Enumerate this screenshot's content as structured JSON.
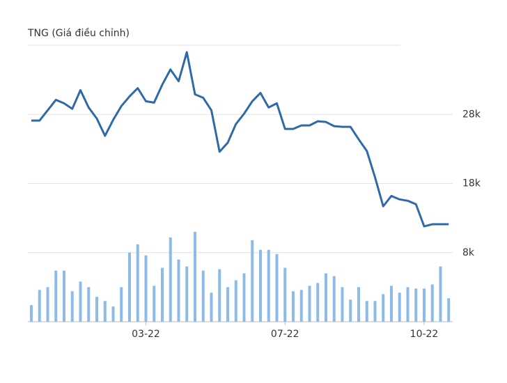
{
  "chart_data": {
    "type": "line",
    "title": "TNG (Giá điều chỉnh)",
    "categories": [
      null,
      null,
      null,
      null,
      null,
      null,
      null,
      null,
      null,
      null,
      null,
      null,
      null,
      null,
      "03-22",
      null,
      null,
      null,
      null,
      null,
      null,
      null,
      null,
      null,
      null,
      null,
      null,
      null,
      null,
      null,
      null,
      "07-22",
      null,
      null,
      null,
      null,
      null,
      null,
      null,
      null,
      null,
      null,
      null,
      null,
      null,
      null,
      null,
      null,
      "10-22",
      null,
      null,
      null
    ],
    "series": [
      {
        "type": "line",
        "color": "#2e6aa8",
        "values": [
          27.1,
          27.1,
          28.6,
          30.1,
          29.6,
          28.8,
          31.5,
          29.0,
          27.4,
          24.9,
          27.2,
          29.2,
          30.6,
          31.8,
          29.9,
          29.7,
          32.3,
          34.5,
          32.8,
          37.0,
          30.9,
          30.4,
          28.6,
          22.6,
          23.9,
          26.6,
          28.1,
          29.9,
          31.1,
          29.0,
          29.6,
          25.9,
          25.9,
          26.4,
          26.4,
          27.0,
          26.9,
          26.3,
          26.2,
          26.2,
          24.4,
          22.7,
          18.9,
          14.7,
          16.2,
          15.7,
          15.5,
          15.0,
          11.8,
          12.1,
          12.1,
          12.1
        ]
      },
      {
        "type": "bar",
        "axis": "y2",
        "color": "#8cbbea",
        "values": [
          24,
          46,
          50,
          74,
          74,
          44,
          58,
          50,
          36,
          30,
          22,
          50,
          100,
          112,
          96,
          52,
          78,
          122,
          90,
          80,
          130,
          74,
          42,
          76,
          50,
          60,
          70,
          118,
          104,
          104,
          98,
          78,
          44,
          46,
          52,
          56,
          70,
          66,
          50,
          32,
          50,
          30,
          30,
          40,
          52,
          42,
          50,
          48,
          48,
          54,
          80,
          34
        ]
      }
    ],
    "ylim": [
      -2,
      38
    ],
    "yticks": [
      {
        "value": 8,
        "label": "8k"
      },
      {
        "value": 18,
        "label": "18k"
      },
      {
        "value": 28,
        "label": "28k"
      }
    ],
    "y2lim": [
      0,
      400
    ],
    "grid": true
  }
}
